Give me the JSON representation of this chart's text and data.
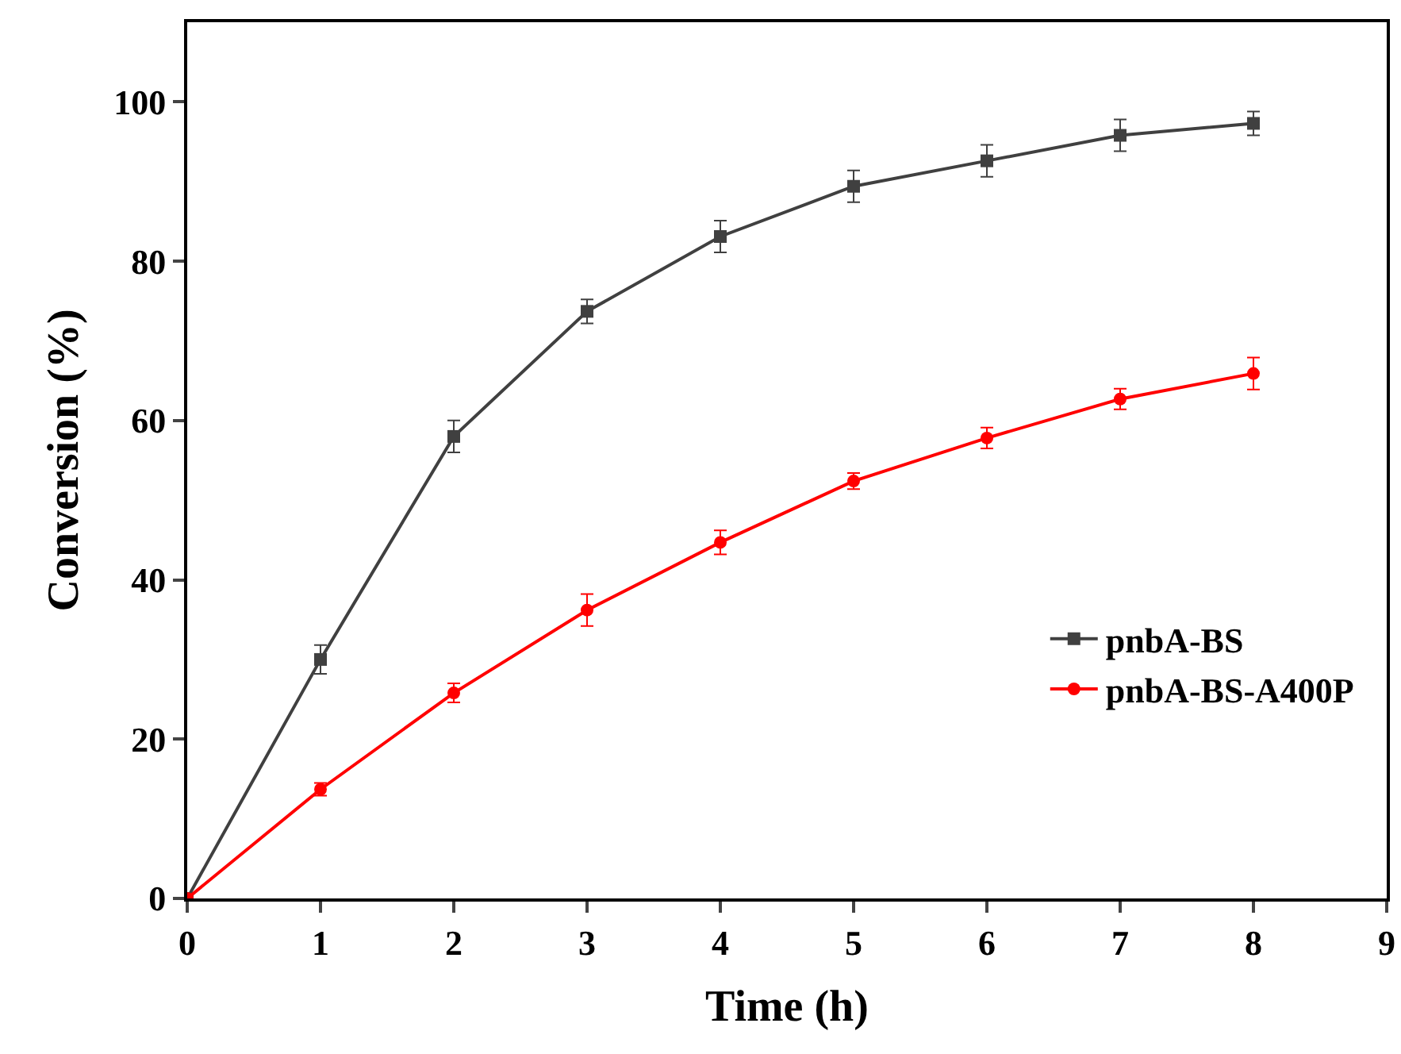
{
  "chart_data": {
    "type": "line",
    "xlabel": "Time (h)",
    "ylabel": "Conversion (%)",
    "x": [
      0,
      1,
      2,
      3,
      4,
      5,
      6,
      7,
      8
    ],
    "series": [
      {
        "name": "pnbA-BS",
        "color": "#404040",
        "marker": "square",
        "values": [
          0,
          30,
          58,
          73.7,
          83.1,
          89.4,
          92.6,
          95.8,
          97.3
        ],
        "errors": [
          null,
          1.8,
          2,
          1.5,
          2,
          2,
          2,
          2,
          1.5
        ]
      },
      {
        "name": "pnbA-BS-A400P",
        "color": "#ff0000",
        "marker": "circle",
        "values": [
          0,
          13.7,
          25.8,
          36.2,
          44.7,
          52.4,
          57.8,
          62.7,
          65.9
        ],
        "errors": [
          null,
          0.8,
          1.2,
          2,
          1.5,
          1,
          1.3,
          1.3,
          2
        ]
      }
    ],
    "xlim": [
      0,
      9
    ],
    "xticks": [
      0,
      1,
      2,
      3,
      4,
      5,
      6,
      7,
      8,
      9
    ],
    "ylim": [
      0,
      110
    ],
    "yticks": [
      0,
      20,
      40,
      60,
      80,
      100
    ],
    "grid": false,
    "legend": "bottom right",
    "line_style": "solid"
  }
}
